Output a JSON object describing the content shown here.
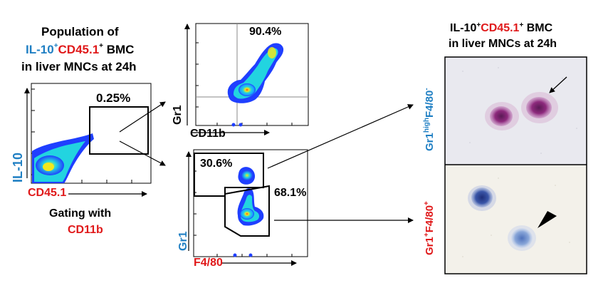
{
  "left_panel": {
    "title_line1": "Population of",
    "title_line2_a": "IL-10",
    "title_line2_sup1": "+",
    "title_line2_b": "CD45.1",
    "title_line2_sup2": "+",
    "title_line2_c": " BMC",
    "title_line3": "in liver MNCs at 24h",
    "gate_percent": "0.25%",
    "y_axis_label": "IL-10",
    "x_axis_label": "CD45.1",
    "gating_line1": "Gating  with",
    "gating_line2": "CD11b"
  },
  "top_plot": {
    "gate_percent": "90.4%",
    "y_axis_label": "Gr1",
    "x_axis_label": "CD11b"
  },
  "bottom_plot": {
    "gate_percent_upper": "30.6%",
    "gate_percent_lower": "68.1%",
    "y_axis_label": "Gr1",
    "x_axis_label": "F4/80"
  },
  "right_panel": {
    "title_line1_a": "IL-10",
    "title_line1_sup1": "+",
    "title_line1_b": "CD45.1",
    "title_line1_sup2": "+",
    "title_line1_c": " BMC",
    "title_line2": "in liver MNCs at 24h",
    "upper_label_a": "Gr1",
    "upper_label_sup1": "high",
    "upper_label_b": "F4/80",
    "upper_label_sup2": "-",
    "lower_label_a": "Gr1",
    "lower_label_sup1": "+",
    "lower_label_b": "F4/80",
    "lower_label_sup2": "+"
  },
  "colors": {
    "blue_text": "#1f7fc3",
    "red_text": "#e0191a",
    "density_low": "#1f3fff",
    "density_mid": "#22d4e0",
    "density_high": "#f2e81c",
    "density_peak": "#ff3b1f"
  }
}
